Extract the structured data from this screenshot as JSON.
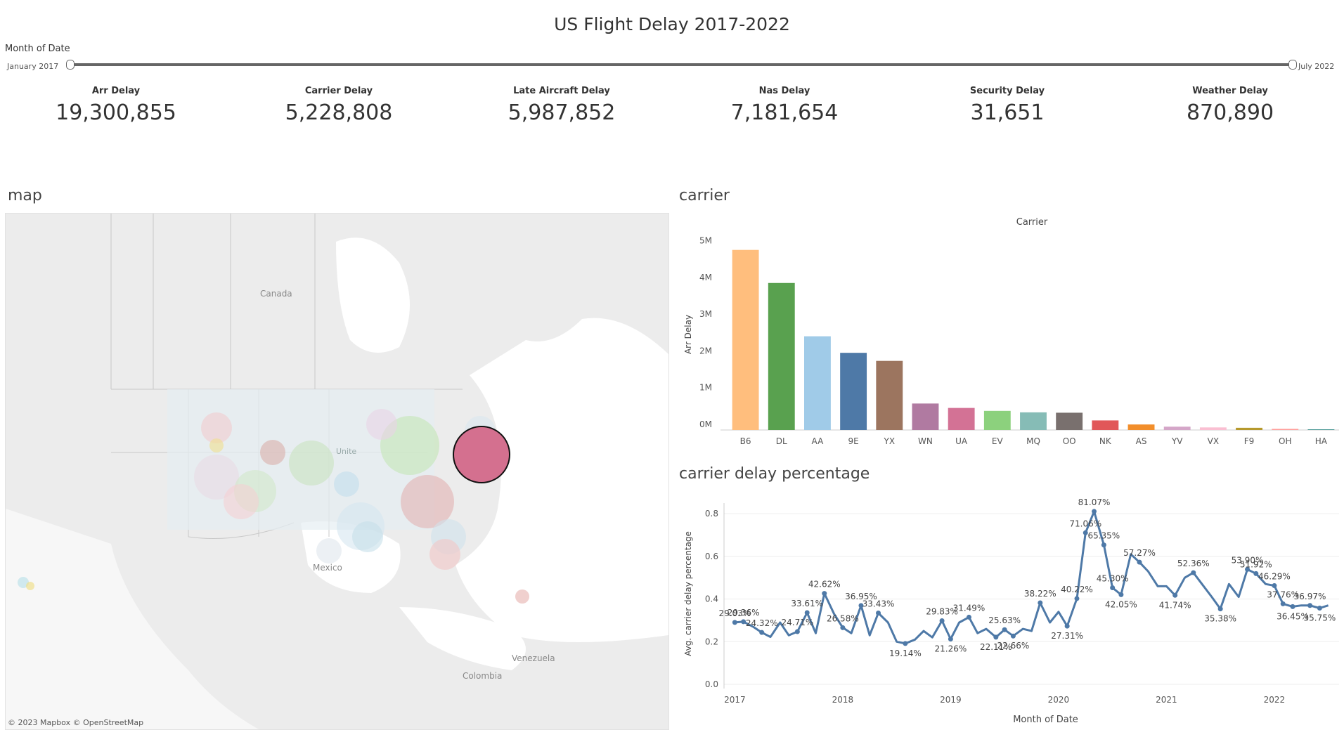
{
  "title": "US Flight Delay 2017-2022",
  "filter": {
    "label": "Month of Date",
    "start": "January 2017",
    "end": "July 2022"
  },
  "kpis": [
    {
      "label": "Arr Delay",
      "value": "19,300,855"
    },
    {
      "label": "Carrier Delay",
      "value": "5,228,808"
    },
    {
      "label": "Late Aircraft Delay",
      "value": "5,987,852"
    },
    {
      "label": "Nas Delay",
      "value": "7,181,654"
    },
    {
      "label": "Security Delay",
      "value": "31,651"
    },
    {
      "label": "Weather Delay",
      "value": "870,890"
    }
  ],
  "map": {
    "title": "map",
    "labels": {
      "canada": "Canada",
      "mexico": "Mexico",
      "venezuela": "Venezuela",
      "colombia": "Colombia",
      "united": "Unite"
    },
    "attribution": "© 2023 Mapbox  © OpenStreetMap",
    "highlight_color": "#d4708f"
  },
  "carrier_section": {
    "title": "carrier"
  },
  "pct_section": {
    "title": "carrier delay percentage"
  },
  "chart_data": [
    {
      "type": "bar",
      "title": "Carrier",
      "ylabel": "Arr Delay",
      "categories": [
        "B6",
        "DL",
        "AA",
        "9E",
        "YX",
        "WN",
        "UA",
        "EV",
        "MQ",
        "OO",
        "NK",
        "AS",
        "YV",
        "VX",
        "F9",
        "OH",
        "HA"
      ],
      "values": [
        4900000,
        4000000,
        2550000,
        2100000,
        1880000,
        720000,
        600000,
        520000,
        480000,
        470000,
        260000,
        150000,
        90000,
        70000,
        60000,
        30000,
        10000
      ],
      "colors": [
        "#ffbe7d",
        "#59a14f",
        "#a0cbe8",
        "#4e79a7",
        "#9c755f",
        "#b07aa1",
        "#d37295",
        "#8cd17d",
        "#86bcb6",
        "#79706e",
        "#e15759",
        "#f28e2b",
        "#d4a6c8",
        "#fabfd2",
        "#b6992d",
        "#ff9d9a",
        "#499894"
      ],
      "yticks": [
        0,
        1000000,
        2000000,
        3000000,
        4000000,
        5000000
      ],
      "ytick_labels": [
        "0M",
        "1M",
        "2M",
        "3M",
        "4M",
        "5M"
      ],
      "ylim": [
        0,
        5200000
      ]
    },
    {
      "type": "line",
      "title": "",
      "xlabel": "Month of Date",
      "ylabel": "Avg. carrier delay percentage",
      "color": "#4e79a7",
      "x_ticks": [
        2017,
        2018,
        2019,
        2020,
        2021,
        2022
      ],
      "xlim": [
        2016.9,
        2022.6
      ],
      "ylim": [
        0,
        0.85
      ],
      "y_ticks": [
        0.0,
        0.2,
        0.4,
        0.6,
        0.8
      ],
      "y_tick_labels": [
        "0.0",
        "0.2",
        "0.4",
        "0.6",
        "0.8"
      ],
      "points": [
        [
          2017.0,
          0.2903,
          "29.03%"
        ],
        [
          2017.08,
          0.2936,
          "29.36%"
        ],
        [
          2017.17,
          0.27,
          ""
        ],
        [
          2017.25,
          0.2432,
          "24.32%"
        ],
        [
          2017.33,
          0.2222,
          ""
        ],
        [
          2017.42,
          0.29,
          ""
        ],
        [
          2017.5,
          0.23,
          ""
        ],
        [
          2017.58,
          0.2471,
          "24.71%"
        ],
        [
          2017.67,
          0.3361,
          "33.61%"
        ],
        [
          2017.75,
          0.24,
          ""
        ],
        [
          2017.83,
          0.4262,
          "42.62%"
        ],
        [
          2017.92,
          0.33,
          ""
        ],
        [
          2018.0,
          0.2658,
          "26.58%"
        ],
        [
          2018.08,
          0.24,
          ""
        ],
        [
          2018.17,
          0.3695,
          "36.95%"
        ],
        [
          2018.25,
          0.23,
          ""
        ],
        [
          2018.33,
          0.3343,
          "33.43%"
        ],
        [
          2018.42,
          0.29,
          ""
        ],
        [
          2018.5,
          0.2,
          ""
        ],
        [
          2018.58,
          0.1914,
          "19.14%"
        ],
        [
          2018.67,
          0.21,
          ""
        ],
        [
          2018.75,
          0.25,
          ""
        ],
        [
          2018.83,
          0.22,
          ""
        ],
        [
          2018.92,
          0.2983,
          "29.83%"
        ],
        [
          2019.0,
          0.2126,
          "21.26%"
        ],
        [
          2019.08,
          0.29,
          ""
        ],
        [
          2019.17,
          0.3149,
          "31.49%"
        ],
        [
          2019.25,
          0.24,
          ""
        ],
        [
          2019.33,
          0.26,
          ""
        ],
        [
          2019.42,
          0.2211,
          "22.11%"
        ],
        [
          2019.5,
          0.2563,
          "25.63%"
        ],
        [
          2019.58,
          0.2266,
          "22.66%"
        ],
        [
          2019.67,
          0.26,
          ""
        ],
        [
          2019.75,
          0.25,
          ""
        ],
        [
          2019.83,
          0.3822,
          "38.22%"
        ],
        [
          2019.92,
          0.29,
          ""
        ],
        [
          2020.0,
          0.34,
          ""
        ],
        [
          2020.08,
          0.2731,
          "27.31%"
        ],
        [
          2020.17,
          0.4022,
          "40.22%"
        ],
        [
          2020.25,
          0.7106,
          "71.06%"
        ],
        [
          2020.33,
          0.8107,
          "81.07%"
        ],
        [
          2020.42,
          0.6535,
          "65.35%"
        ],
        [
          2020.5,
          0.453,
          "45.30%"
        ],
        [
          2020.58,
          0.4205,
          "42.05%"
        ],
        [
          2020.67,
          0.61,
          ""
        ],
        [
          2020.75,
          0.5727,
          "57.27%"
        ],
        [
          2020.83,
          0.53,
          ""
        ],
        [
          2020.92,
          0.46,
          ""
        ],
        [
          2021.0,
          0.46,
          ""
        ],
        [
          2021.08,
          0.4174,
          "41.74%"
        ],
        [
          2021.17,
          0.5,
          ""
        ],
        [
          2021.25,
          0.5236,
          "52.36%"
        ],
        [
          2021.33,
          0.47,
          ""
        ],
        [
          2021.42,
          0.41,
          ""
        ],
        [
          2021.5,
          0.3538,
          "35.38%"
        ],
        [
          2021.58,
          0.47,
          ""
        ],
        [
          2021.67,
          0.41,
          ""
        ],
        [
          2021.75,
          0.539,
          "53.90%"
        ],
        [
          2021.83,
          0.5192,
          "51.92%"
        ],
        [
          2021.92,
          0.47,
          ""
        ],
        [
          2022.0,
          0.4629,
          "46.29%"
        ],
        [
          2022.08,
          0.3776,
          "37.76%"
        ],
        [
          2022.17,
          0.3645,
          "36.45%"
        ],
        [
          2022.25,
          0.37,
          ""
        ],
        [
          2022.33,
          0.3697,
          "36.97%"
        ],
        [
          2022.42,
          0.3575,
          "35.75%"
        ],
        [
          2022.5,
          0.37,
          ""
        ]
      ]
    }
  ]
}
